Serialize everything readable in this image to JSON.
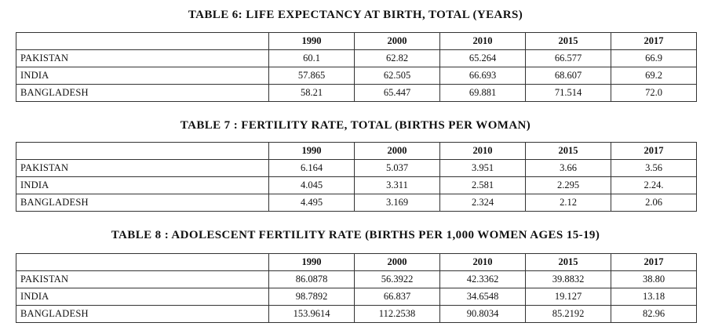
{
  "tables": [
    {
      "title": "TABLE 6: LIFE EXPECTANCY AT BIRTH, TOTAL (YEARS)",
      "columns": [
        "",
        "1990",
        "2000",
        "2010",
        "2015",
        "2017"
      ],
      "rows": [
        [
          "PAKISTAN",
          "60.1",
          "62.82",
          "65.264",
          "66.577",
          "66.9"
        ],
        [
          "INDIA",
          "57.865",
          "62.505",
          "66.693",
          "68.607",
          "69.2"
        ],
        [
          "BANGLADESH",
          "58.21",
          "65.447",
          "69.881",
          "71.514",
          "72.0"
        ]
      ]
    },
    {
      "title": "TABLE 7 :  FERTILITY RATE, TOTAL (BIRTHS PER WOMAN)",
      "columns": [
        "",
        "1990",
        "2000",
        "2010",
        "2015",
        "2017"
      ],
      "rows": [
        [
          "PAKISTAN",
          "6.164",
          "5.037",
          "3.951",
          "3.66",
          "3.56"
        ],
        [
          "INDIA",
          "4.045",
          "3.311",
          "2.581",
          "2.295",
          "2.24."
        ],
        [
          "BANGLADESH",
          "4.495",
          "3.169",
          "2.324",
          "2.12",
          "2.06"
        ]
      ]
    },
    {
      "title": "TABLE 8 : ADOLESCENT FERTILITY RATE (BIRTHS PER 1,000 WOMEN AGES 15-19)",
      "columns": [
        "",
        "1990",
        "2000",
        "2010",
        "2015",
        "2017"
      ],
      "rows": [
        [
          "PAKISTAN",
          "86.0878",
          "56.3922",
          "42.3362",
          "39.8832",
          "38.80"
        ],
        [
          "INDIA",
          "98.7892",
          "66.837",
          "34.6548",
          "19.127",
          "13.18"
        ],
        [
          "BANGLADESH",
          "153.9614",
          "112.2538",
          "90.8034",
          "85.2192",
          "82.96"
        ]
      ]
    }
  ]
}
